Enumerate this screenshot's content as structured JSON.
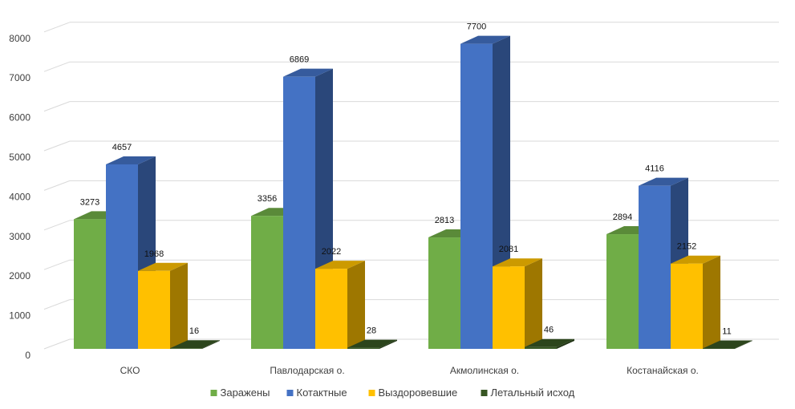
{
  "chart_data": {
    "type": "bar",
    "title": "",
    "xlabel": "",
    "ylabel": "",
    "ylim": [
      0,
      8000
    ],
    "yticks": [
      "0",
      "1000",
      "2000",
      "3000",
      "4000",
      "5000",
      "6000",
      "7000",
      "8000"
    ],
    "categories": [
      "СКО",
      "Павлодарская о.",
      "Акмолинская о.",
      "Костанайская о."
    ],
    "series": [
      {
        "name": "Заражены",
        "values": [
          3273,
          3356,
          2813,
          2894
        ],
        "color": "#70AD47"
      },
      {
        "name": "Котактные",
        "values": [
          4657,
          6869,
          7700,
          4116
        ],
        "color": "#4472C4"
      },
      {
        "name": "Выздоровевшие",
        "values": [
          1968,
          2022,
          2081,
          2152
        ],
        "color": "#FFC000"
      },
      {
        "name": "Летальный исход",
        "values": [
          16,
          28,
          46,
          11
        ],
        "color": "#375623"
      }
    ],
    "grid": true,
    "legend_position": "bottom",
    "style": "3d-clustered-column"
  }
}
